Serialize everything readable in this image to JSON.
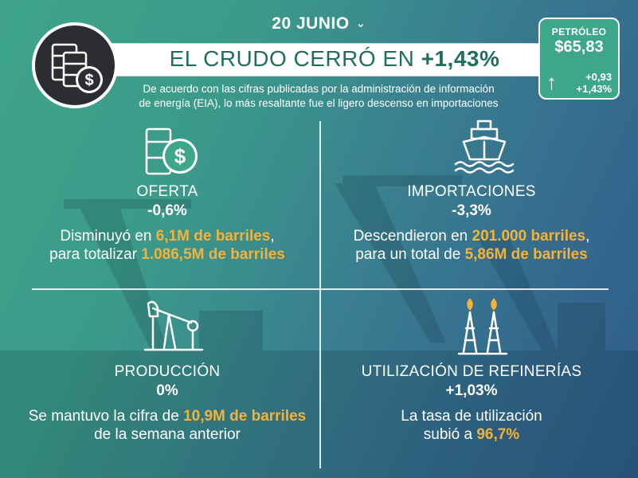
{
  "header": {
    "date": "20 JUNIO",
    "title_prefix": "EL CRUDO CERRÓ EN ",
    "title_value": "+1,43%",
    "subtitle_line1": "De acuerdo con las cifras publicadas por la administración de información",
    "subtitle_line2": "de energía (EIA), lo más resaltante fue el ligero descenso en importaciones"
  },
  "price_card": {
    "label": "PETRÓLEO",
    "price": "$65,83",
    "change_abs": "+0,93",
    "change_pct": "+1,43%"
  },
  "quadrants": [
    {
      "title": "OFERTA",
      "change": "-0,6%",
      "desc_a": "Disminuyó en ",
      "desc_hl1": "6,1M de barriles",
      "desc_b": ",",
      "desc_c": "para totalizar ",
      "desc_hl2": "1.086,5M de barriles",
      "icon": "barrels-dollar-icon"
    },
    {
      "title": "IMPORTACIONES",
      "change": "-3,3%",
      "desc_a": "Descendieron en ",
      "desc_hl1": "201.000 barriles",
      "desc_b": ",",
      "desc_c": "para un total de ",
      "desc_hl2": "5,86M de barriles",
      "icon": "ship-icon"
    },
    {
      "title": "PRODUCCIÓN",
      "change": "0%",
      "desc_a": "Se mantuvo la cifra de ",
      "desc_hl1": "10,9M de barriles",
      "desc_c": "de la semana anterior",
      "icon": "pumpjack-icon"
    },
    {
      "title": "UTILIZACIÓN DE REFINERÍAS",
      "change": "+1,03%",
      "desc_a": "La tasa de utilización",
      "desc_c": "subió a ",
      "desc_hl2": "96,7%",
      "icon": "refinery-towers-icon"
    }
  ],
  "colors": {
    "highlight": "#f5b239",
    "title_text": "#1f6f5f",
    "card_bg": "#3ea78a"
  }
}
